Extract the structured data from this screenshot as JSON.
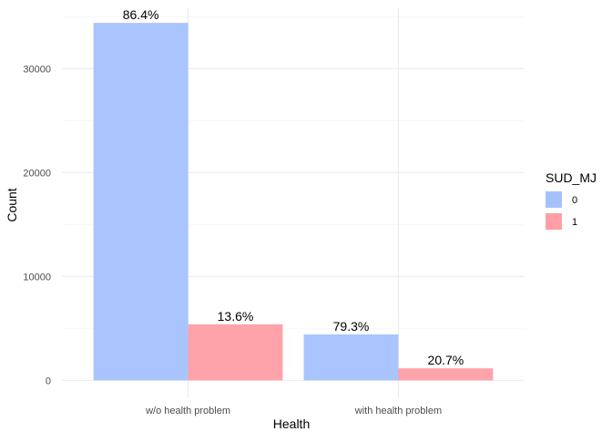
{
  "chart_data": {
    "type": "bar",
    "xlabel": "Health",
    "ylabel": "Count",
    "categories": [
      "w/o health problem",
      "with health problem"
    ],
    "series": [
      {
        "name": "0",
        "values": [
          34400,
          4420
        ],
        "labels": [
          "86.4%",
          "79.3%"
        ]
      },
      {
        "name": "1",
        "values": [
          5400,
          1160
        ],
        "labels": [
          "13.6%",
          "20.7%"
        ]
      }
    ],
    "ylim": [
      -1720,
      35900
    ],
    "yticks": [
      0,
      10000,
      20000,
      30000
    ],
    "ytick_labels": [
      "0",
      "10000",
      "20000",
      "30000"
    ],
    "grid": true,
    "legend": {
      "title": "SUD_MJ",
      "entries": [
        "0",
        "1"
      ],
      "position": "right"
    },
    "colors": {
      "series0": "#a5c1fd",
      "series1": "#ff9ea5"
    },
    "bar_opacity": 0.95
  }
}
